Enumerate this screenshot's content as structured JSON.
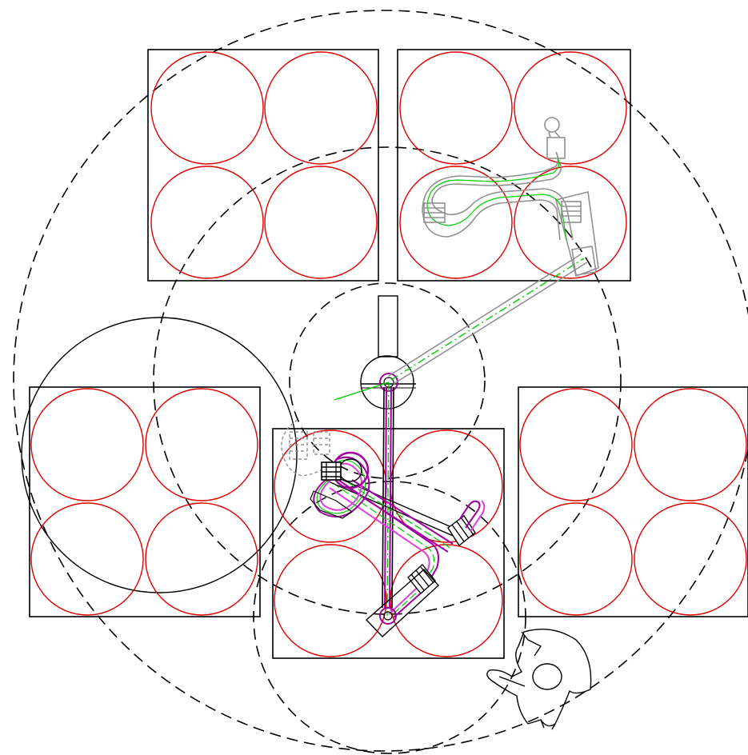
{
  "drawing": {
    "type": "robot-cell-layout-plan",
    "colors": {
      "background": "#ffffff",
      "outline": "#000000",
      "container": "#e00000",
      "arm_primary": "#a000a0",
      "arm_highlight": "#e040e0",
      "arm_ghost": "#909090",
      "centerline": "#00cc00"
    },
    "line_styles": {
      "reach_envelope": "dashed",
      "arm_centerline": "dash-dot"
    },
    "layout": {
      "pallet_stations": 5,
      "containers_per_station": 4,
      "reach_envelopes": 4,
      "robot_poses": [
        "active-pose",
        "ghost-pose-right",
        "ghost-pose-left"
      ],
      "operator_figure": "top-down-person"
    }
  }
}
